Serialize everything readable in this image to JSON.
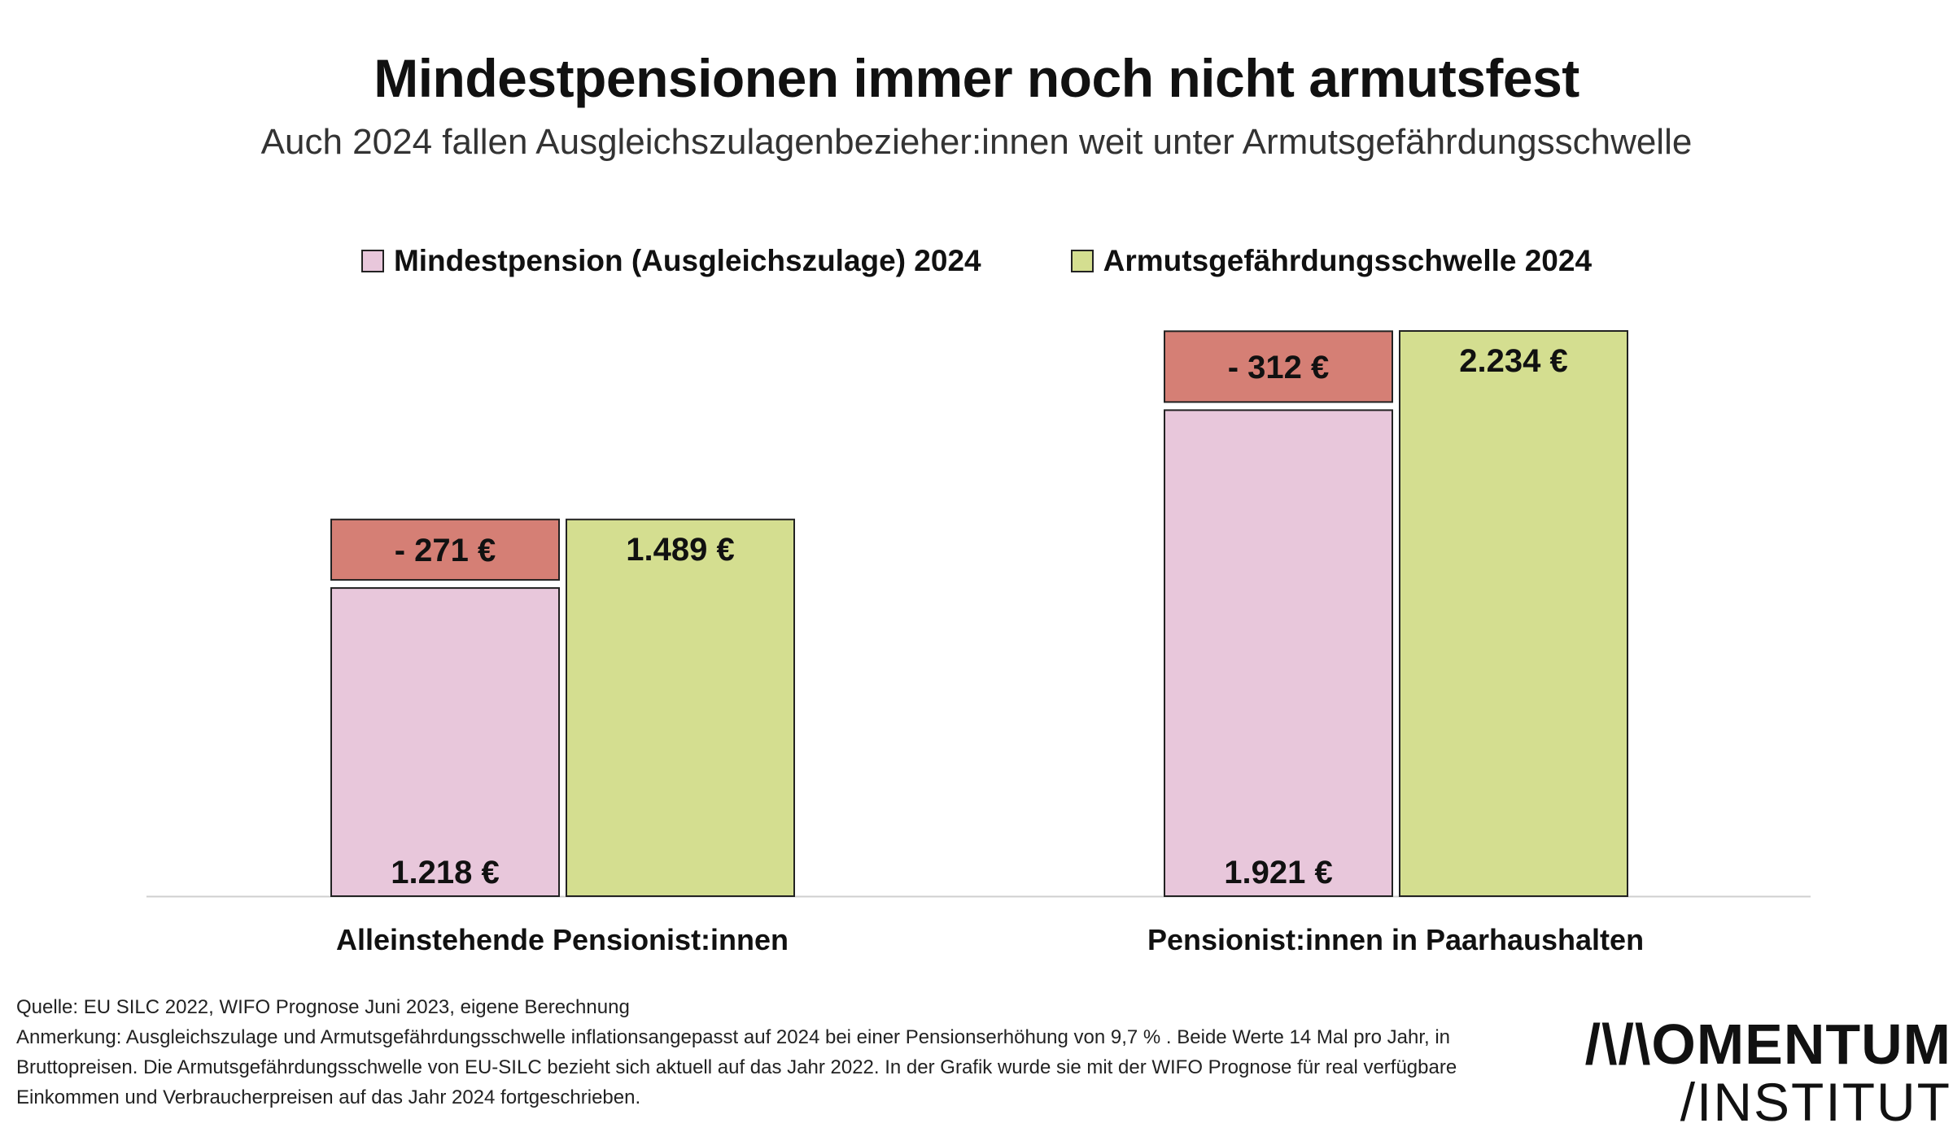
{
  "chart_data": {
    "type": "bar",
    "title": "Mindestpensionen immer noch nicht armutsfest",
    "subtitle": "Auch 2024 fallen Ausgleichszulagenbezieher:innen weit unter Armutsgefährdungsschwelle",
    "categories": [
      "Alleinstehende Pensionist:innen",
      "Pensionist:innen in Paarhaushalten"
    ],
    "series": [
      {
        "name": "Mindestpension (Ausgleichszulage) 2024",
        "values": [
          1218,
          1921
        ],
        "labels": [
          "1.218 €",
          "1.921 €"
        ],
        "color": "#e8c7db"
      },
      {
        "name": "Armutsgefährdungsschwelle 2024",
        "values": [
          1489,
          2234
        ],
        "labels": [
          "1.489 €",
          "2.234 €"
        ],
        "color": "#d4de90"
      }
    ],
    "gap": {
      "values": [
        -271,
        -312
      ],
      "labels": [
        "- 271 €",
        "- 312 €"
      ],
      "color": "#d57f75"
    },
    "ylim": [
      0,
      2234
    ],
    "grid": false
  },
  "footer": {
    "source": "Quelle:  EU SILC 2022, WIFO Prognose Juni 2023, eigene Berechnung",
    "note": "Anmerkung: Ausgleichszulage und Armutsgefährdungsschwelle inflationsangepasst auf 2024 bei einer Pensionserhöhung von 9,7 % . Beide Werte 14 Mal pro Jahr, in Bruttopreisen. Die Armutsgefährdungsschwelle von EU-SILC bezieht sich aktuell auf das Jahr 2022. In der Grafik wurde sie mit der WIFO Prognose für real verfügbare Einkommen und Verbraucherpreisen auf das Jahr 2024 fortgeschrieben."
  },
  "logo": {
    "line1": "/\\/\\OMENTUM",
    "line2": "/INSTITUT"
  }
}
